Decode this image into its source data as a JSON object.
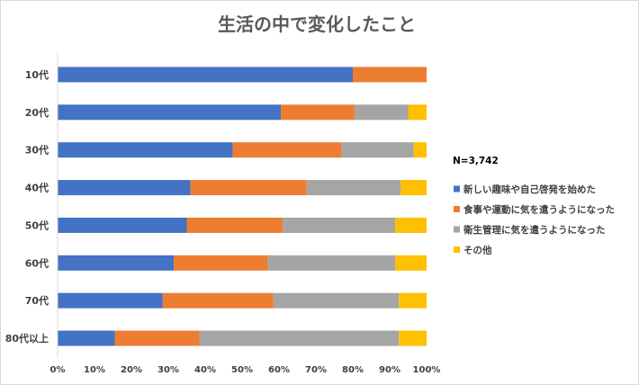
{
  "chart_data": {
    "type": "bar",
    "orientation": "horizontal",
    "stacked": "percent",
    "title": "生活の中で変化したこと",
    "note": "N=3,742",
    "categories": [
      "10代",
      "20代",
      "30代",
      "40代",
      "50代",
      "60代",
      "70代",
      "80代以上"
    ],
    "series": [
      {
        "name": "新しい趣味や自己啓発を始めた",
        "color": "#4472C4",
        "values": [
          80,
          60.5,
          47.5,
          36,
          35,
          31.5,
          28.5,
          15.5
        ]
      },
      {
        "name": "食事や運動に気を遣うようになった",
        "color": "#ED7D31",
        "values": [
          20,
          20,
          29.5,
          31.5,
          26,
          25.5,
          30,
          23
        ]
      },
      {
        "name": "衛生管理に気を遣うようになった",
        "color": "#A5A5A5",
        "values": [
          0,
          14.5,
          19.5,
          25.5,
          30.5,
          34.5,
          34,
          54
        ]
      },
      {
        "name": "その他",
        "color": "#FFC000",
        "values": [
          0,
          5,
          3.5,
          7,
          8.5,
          8.5,
          7.5,
          7.5
        ]
      }
    ],
    "x_ticks": [
      "0%",
      "10%",
      "20%",
      "30%",
      "40%",
      "50%",
      "60%",
      "70%",
      "80%",
      "90%",
      "100%"
    ],
    "xlim": [
      0,
      100
    ],
    "grid": false,
    "legend_position": "right"
  }
}
